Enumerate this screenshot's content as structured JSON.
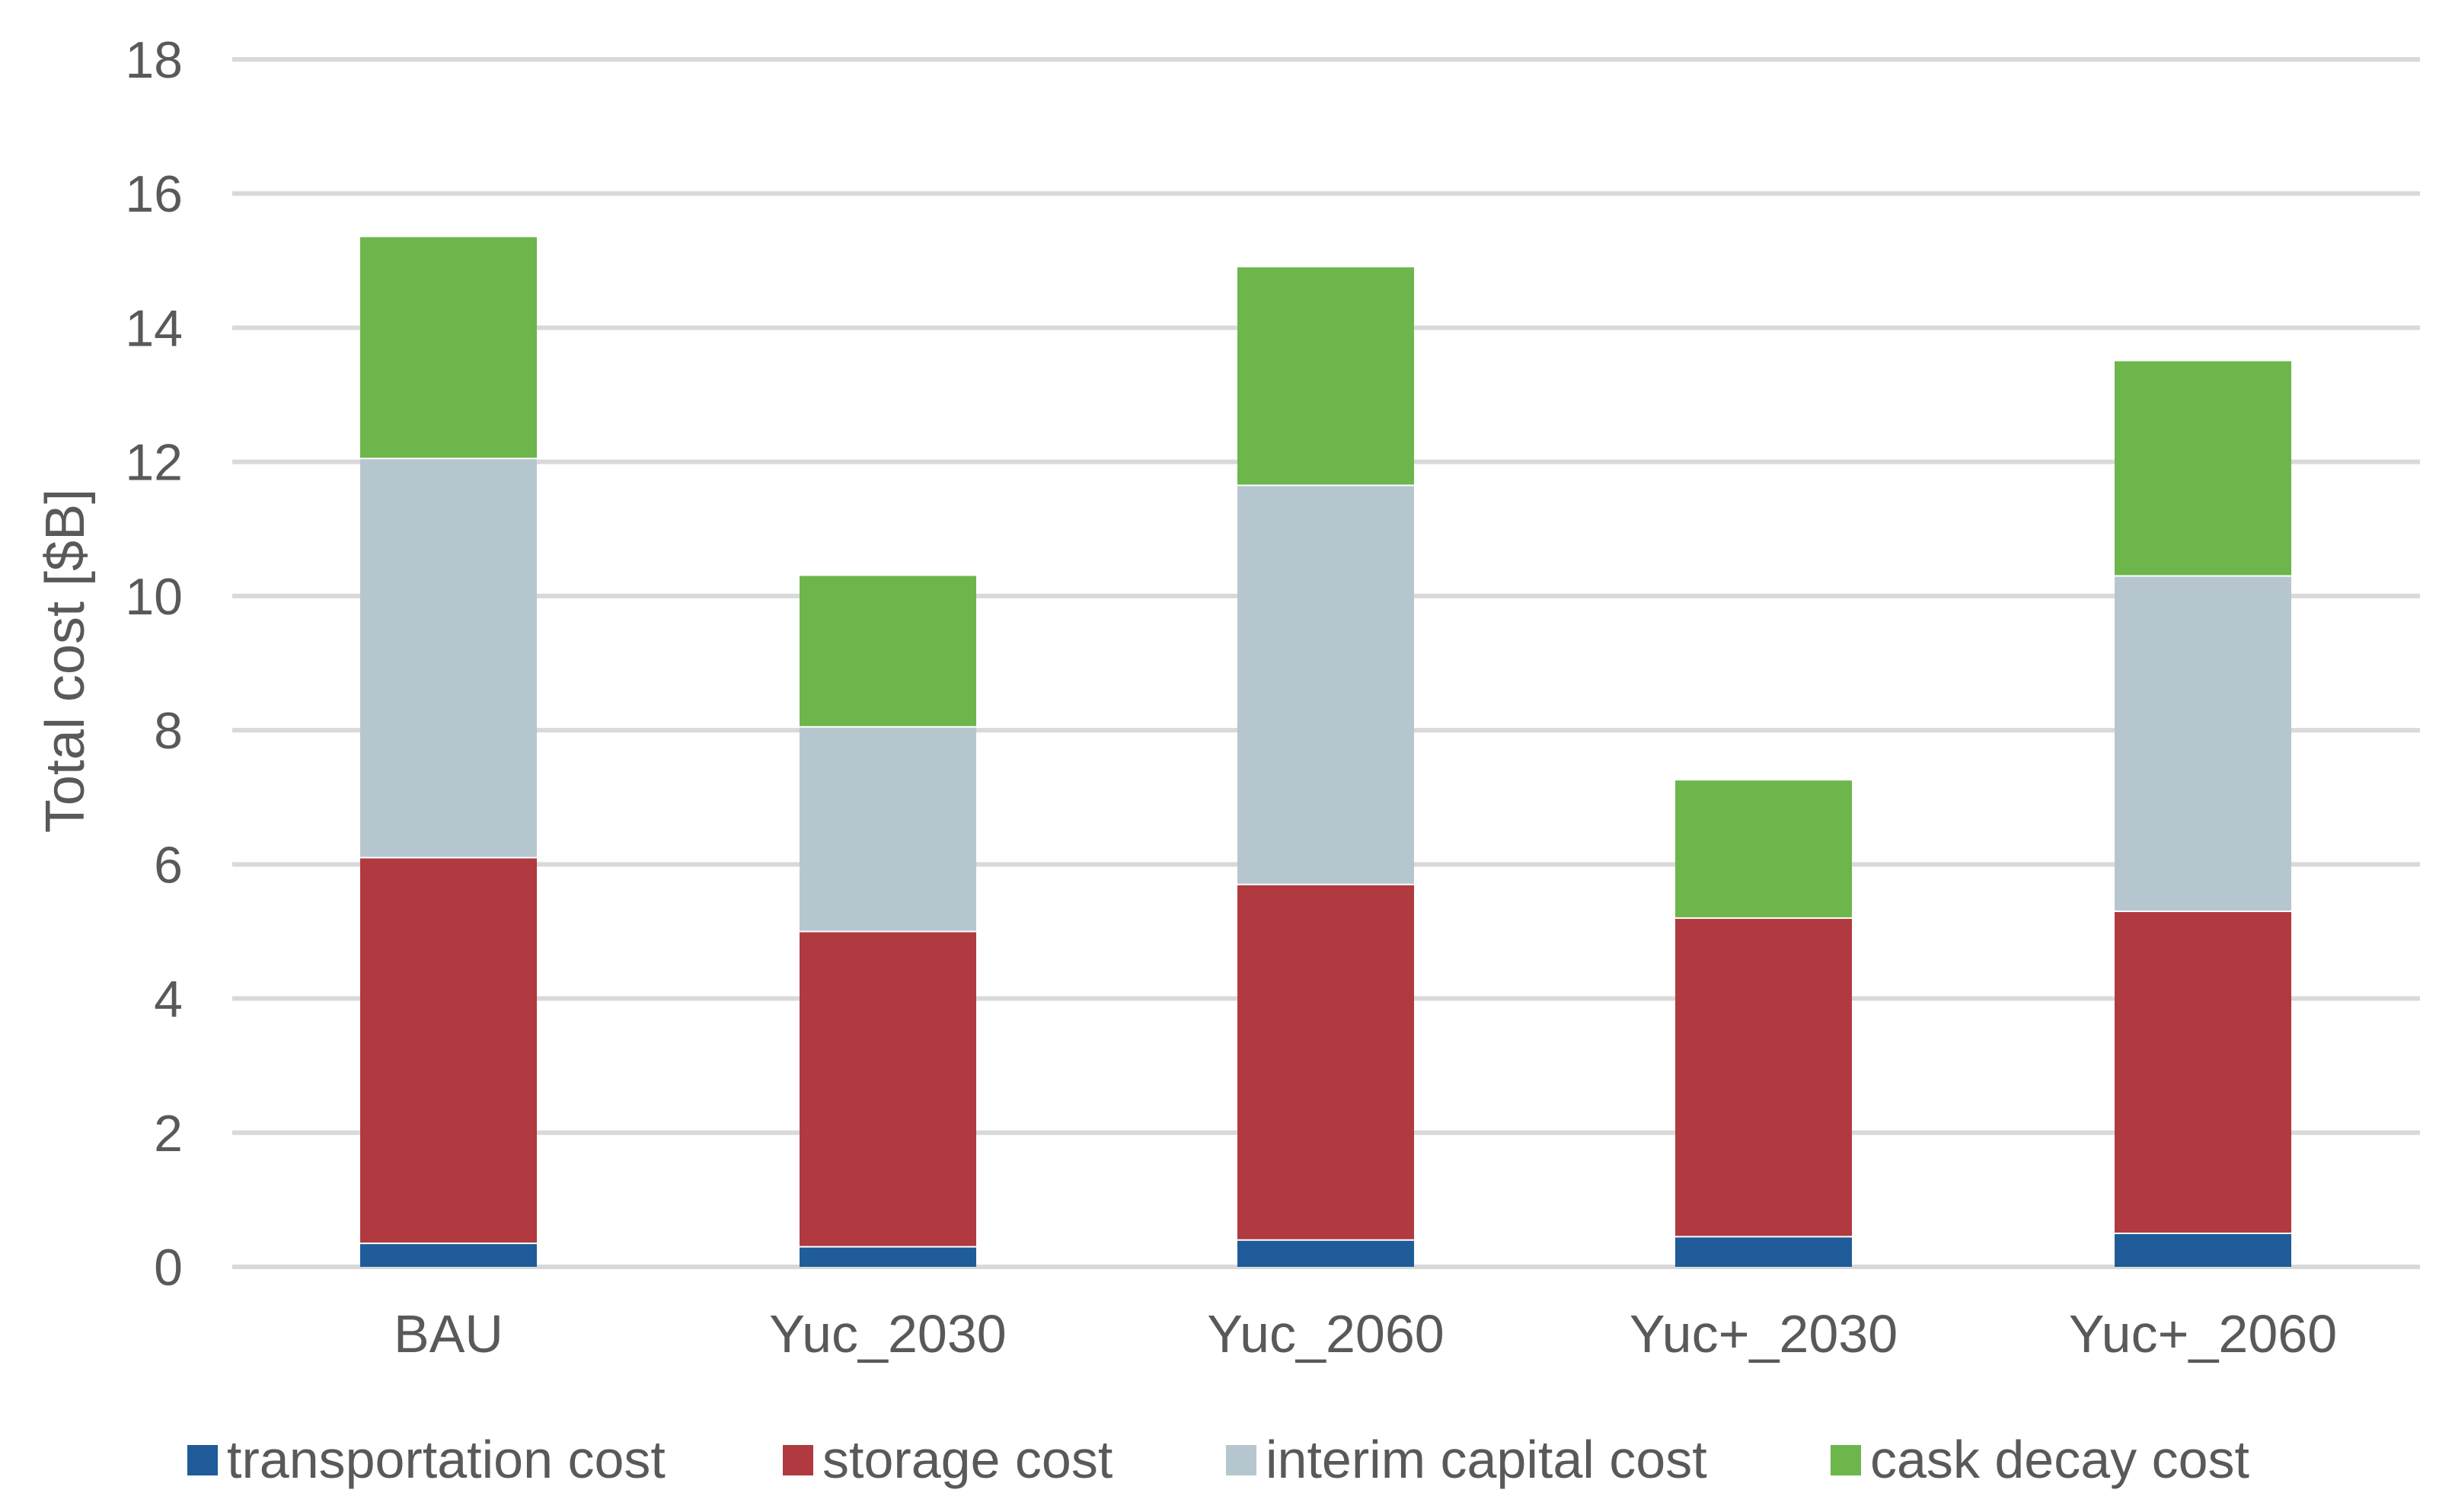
{
  "chart_data": {
    "type": "bar",
    "stacked": true,
    "title": "",
    "xlabel": "",
    "ylabel": "Total cost [$B]",
    "ylim": [
      0,
      18
    ],
    "yticks": [
      0,
      2,
      4,
      6,
      8,
      10,
      12,
      14,
      16,
      18
    ],
    "grid": true,
    "legend_position": "bottom",
    "categories": [
      "BAU",
      "Yuc_2030",
      "Yuc_2060",
      "Yuc+_2030",
      "Yuc+_2060"
    ],
    "series": [
      {
        "name": "transportation cost",
        "color": "#1f5c99",
        "values": [
          0.35,
          0.3,
          0.4,
          0.45,
          0.5
        ]
      },
      {
        "name": "storage cost",
        "color": "#b03a3f",
        "values": [
          5.75,
          4.7,
          5.3,
          4.75,
          4.8
        ]
      },
      {
        "name": "interim capital cost",
        "color": "#b6c6cf",
        "values": [
          5.95,
          3.05,
          5.95,
          0.0,
          5.0
        ]
      },
      {
        "name": "cask decay cost",
        "color": "#6cb64c",
        "values": [
          3.3,
          2.25,
          3.25,
          2.05,
          3.2
        ]
      }
    ]
  }
}
